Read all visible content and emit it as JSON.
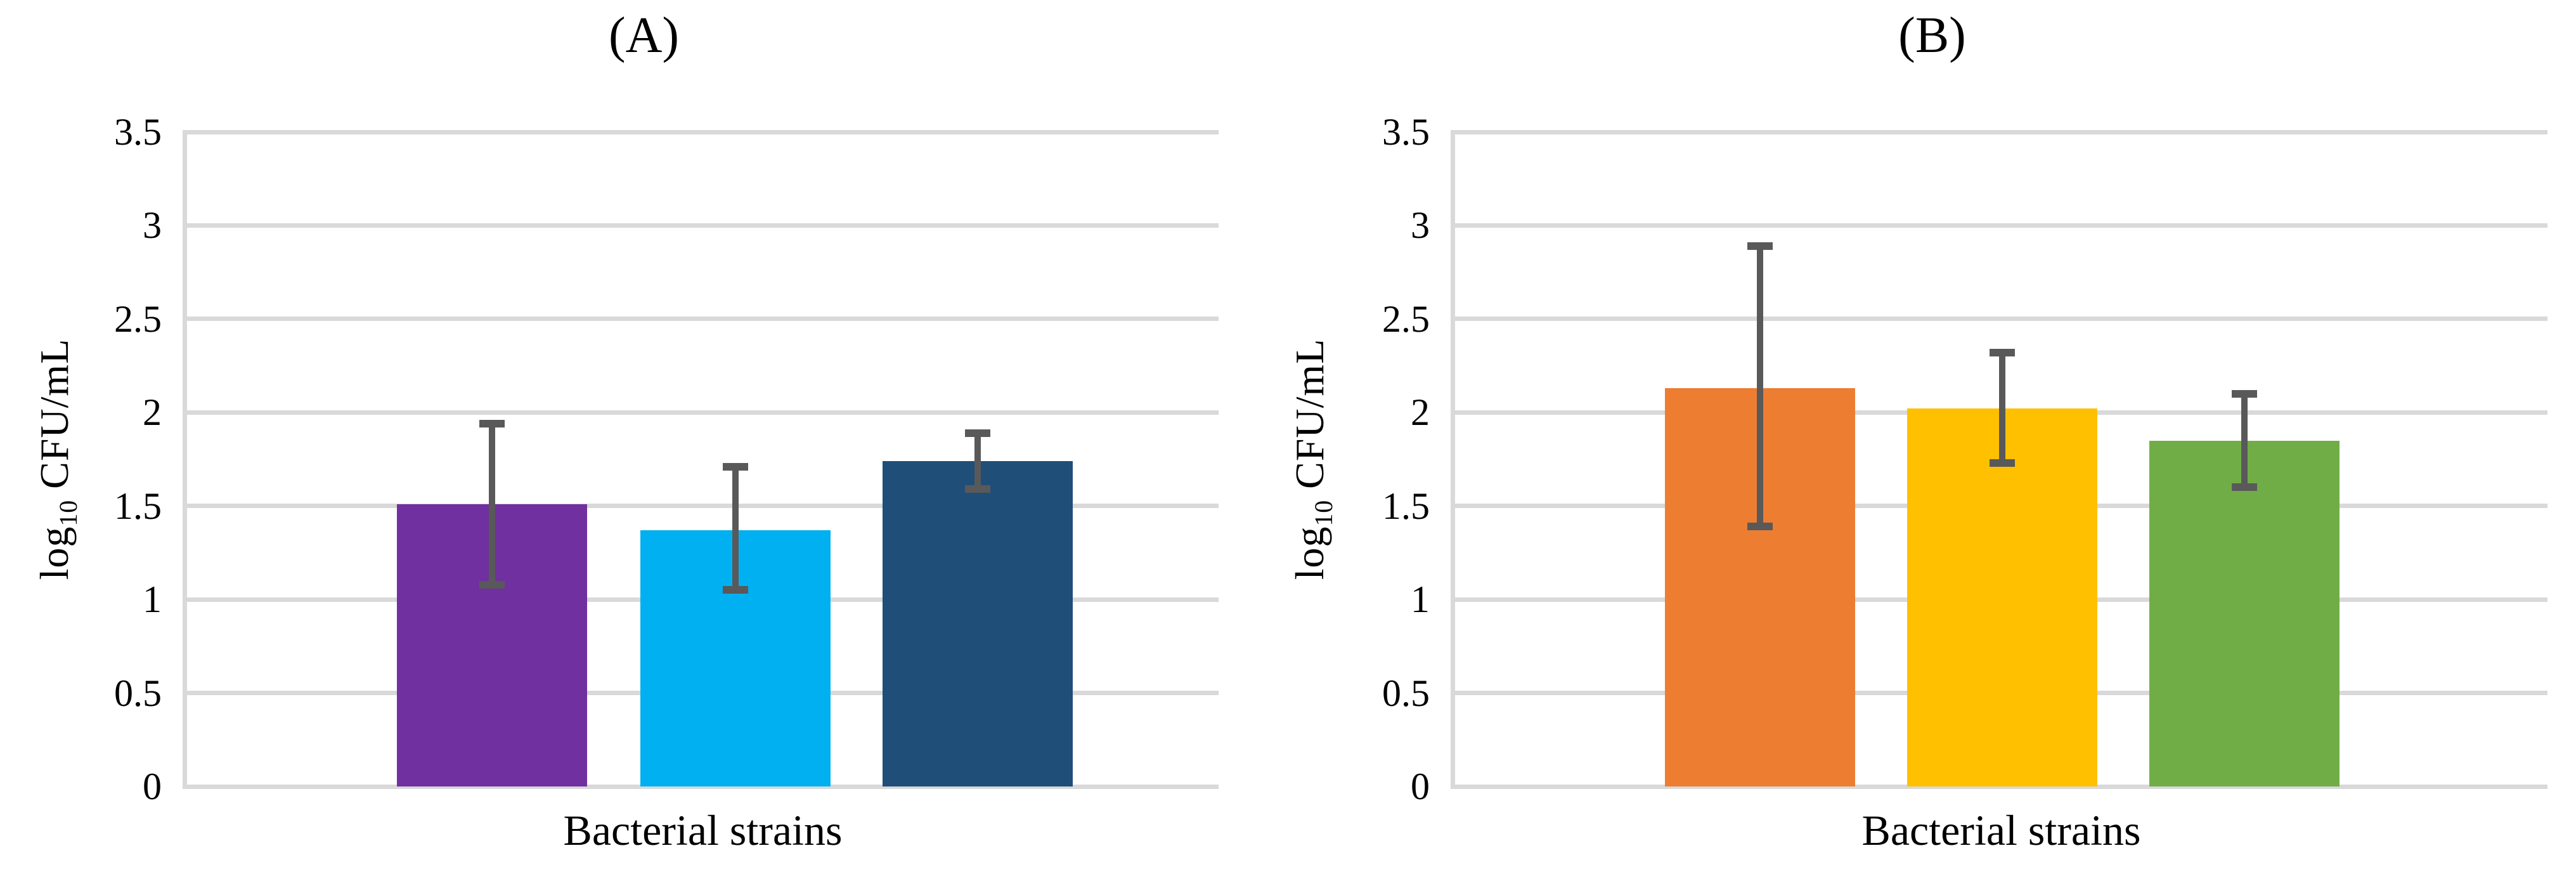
{
  "styles": {
    "background": "#FFFFFF",
    "text_color": "#000000",
    "gridline_color": "#D9D9D9",
    "axis_line_color": "#D9D9D9",
    "error_bar_color": "#595959"
  },
  "chart_data": [
    {
      "type": "bar",
      "panel_label": "(A)",
      "title": "(A)",
      "xlabel": "Bacterial strains",
      "ylabel": "log10 CFU/mL",
      "ylabel_parts": {
        "pre": "log",
        "sub": "10",
        "post": " CFU/mL"
      },
      "ylim": [
        0,
        3.5
      ],
      "ytick_step": 0.5,
      "ytick_labels": [
        "3.5",
        "3",
        "2.5",
        "2",
        "1.5",
        "1",
        "0.5",
        "0"
      ],
      "grid": true,
      "legend": false,
      "bars": [
        {
          "color_name": "purple",
          "color": "#7030A0",
          "value": 1.51,
          "error_high": 1.94,
          "error_low": 1.08
        },
        {
          "color_name": "light-blue",
          "color": "#00B0F0",
          "value": 1.37,
          "error_high": 1.71,
          "error_low": 1.05
        },
        {
          "color_name": "dark-blue",
          "color": "#1F4E79",
          "value": 1.74,
          "error_high": 1.89,
          "error_low": 1.59
        }
      ]
    },
    {
      "type": "bar",
      "panel_label": "(B)",
      "title": "(B)",
      "xlabel": "Bacterial strains",
      "ylabel": "log10 CFU/mL",
      "ylabel_parts": {
        "pre": "log",
        "sub": "10",
        "post": " CFU/mL"
      },
      "ylim": [
        0,
        3.5
      ],
      "ytick_step": 0.5,
      "ytick_labels": [
        "3.5",
        "3",
        "2.5",
        "2",
        "1.5",
        "1",
        "0.5",
        "0"
      ],
      "grid": true,
      "legend": false,
      "bars": [
        {
          "color_name": "orange",
          "color": "#ED7D31",
          "value": 2.13,
          "error_high": 2.89,
          "error_low": 1.39
        },
        {
          "color_name": "yellow",
          "color": "#FFC000",
          "value": 2.02,
          "error_high": 2.32,
          "error_low": 1.73
        },
        {
          "color_name": "green",
          "color": "#70AD47",
          "value": 1.85,
          "error_high": 2.1,
          "error_low": 1.6
        }
      ]
    }
  ]
}
